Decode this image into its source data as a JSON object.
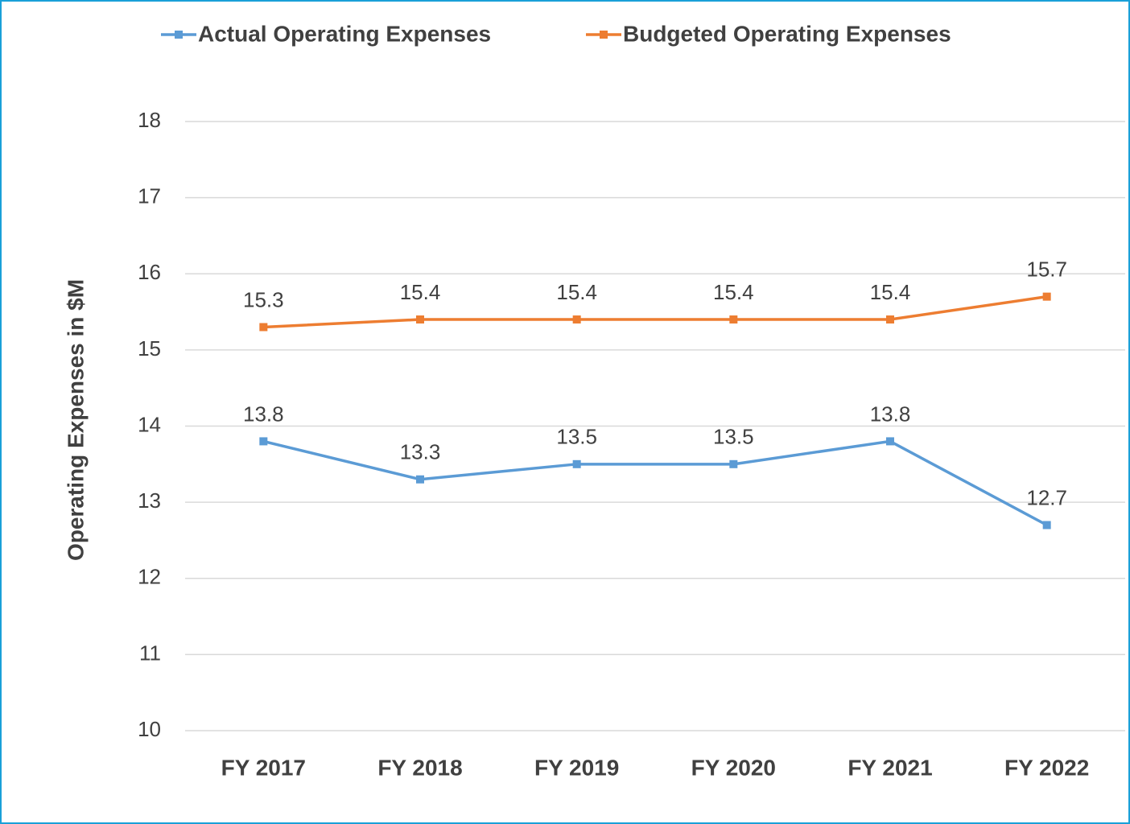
{
  "chart_data": {
    "type": "line",
    "ylabel": "Operating Expenses in $M",
    "categories": [
      "FY 2017",
      "FY 2018",
      "FY 2019",
      "FY 2020",
      "FY 2021",
      "FY 2022"
    ],
    "series": [
      {
        "name": "Actual Operating Expenses",
        "color": "#5b9bd5",
        "values": [
          13.8,
          13.3,
          13.5,
          13.5,
          13.8,
          12.7
        ]
      },
      {
        "name": "Budgeted Operating Expenses",
        "color": "#ed7d31",
        "values": [
          15.3,
          15.4,
          15.4,
          15.4,
          15.4,
          15.7
        ]
      }
    ],
    "ylim": [
      10,
      18
    ],
    "yticks": [
      10,
      11,
      12,
      13,
      14,
      15,
      16,
      17,
      18
    ],
    "grid": true,
    "legend": "top"
  }
}
